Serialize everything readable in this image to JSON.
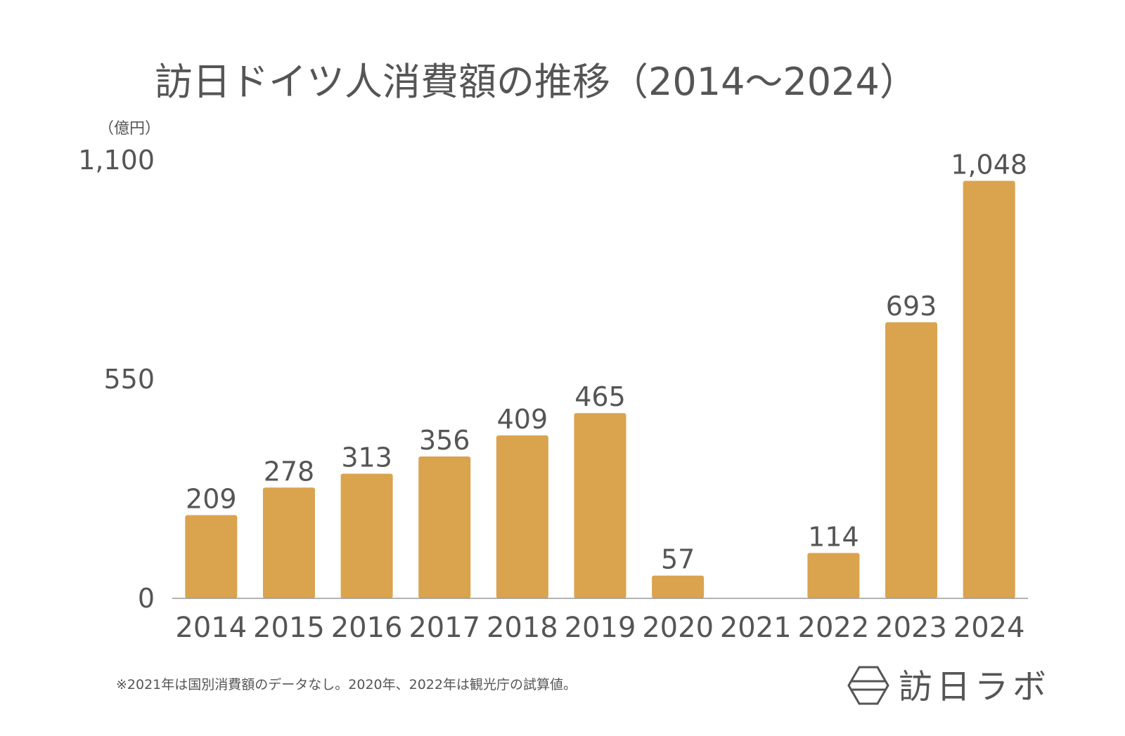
{
  "chart_data": {
    "type": "bar",
    "title": "訪日ドイツ人消費額の推移（2014〜2024）",
    "unit_label": "（億円）",
    "categories": [
      "2014",
      "2015",
      "2016",
      "2017",
      "2018",
      "2019",
      "2020",
      "2021",
      "2022",
      "2023",
      "2024"
    ],
    "values": [
      209,
      278,
      313,
      356,
      409,
      465,
      57,
      null,
      114,
      693,
      1048
    ],
    "value_labels": [
      "209",
      "278",
      "313",
      "356",
      "409",
      "465",
      "57",
      "",
      "114",
      "693",
      "1,048"
    ],
    "ylim": [
      0,
      1100
    ],
    "yticks": [
      0,
      550,
      1100
    ],
    "ytick_labels": [
      "0",
      "550",
      "1,100"
    ],
    "bar_color": "#DAA34E",
    "grid": false,
    "legend": "none"
  },
  "footnote": "※2021年は国別消費額のデータなし。2020年、2022年は観光庁の試算値。",
  "brand": {
    "name": "訪日ラボ",
    "icon": "hexagon-logo-icon"
  }
}
